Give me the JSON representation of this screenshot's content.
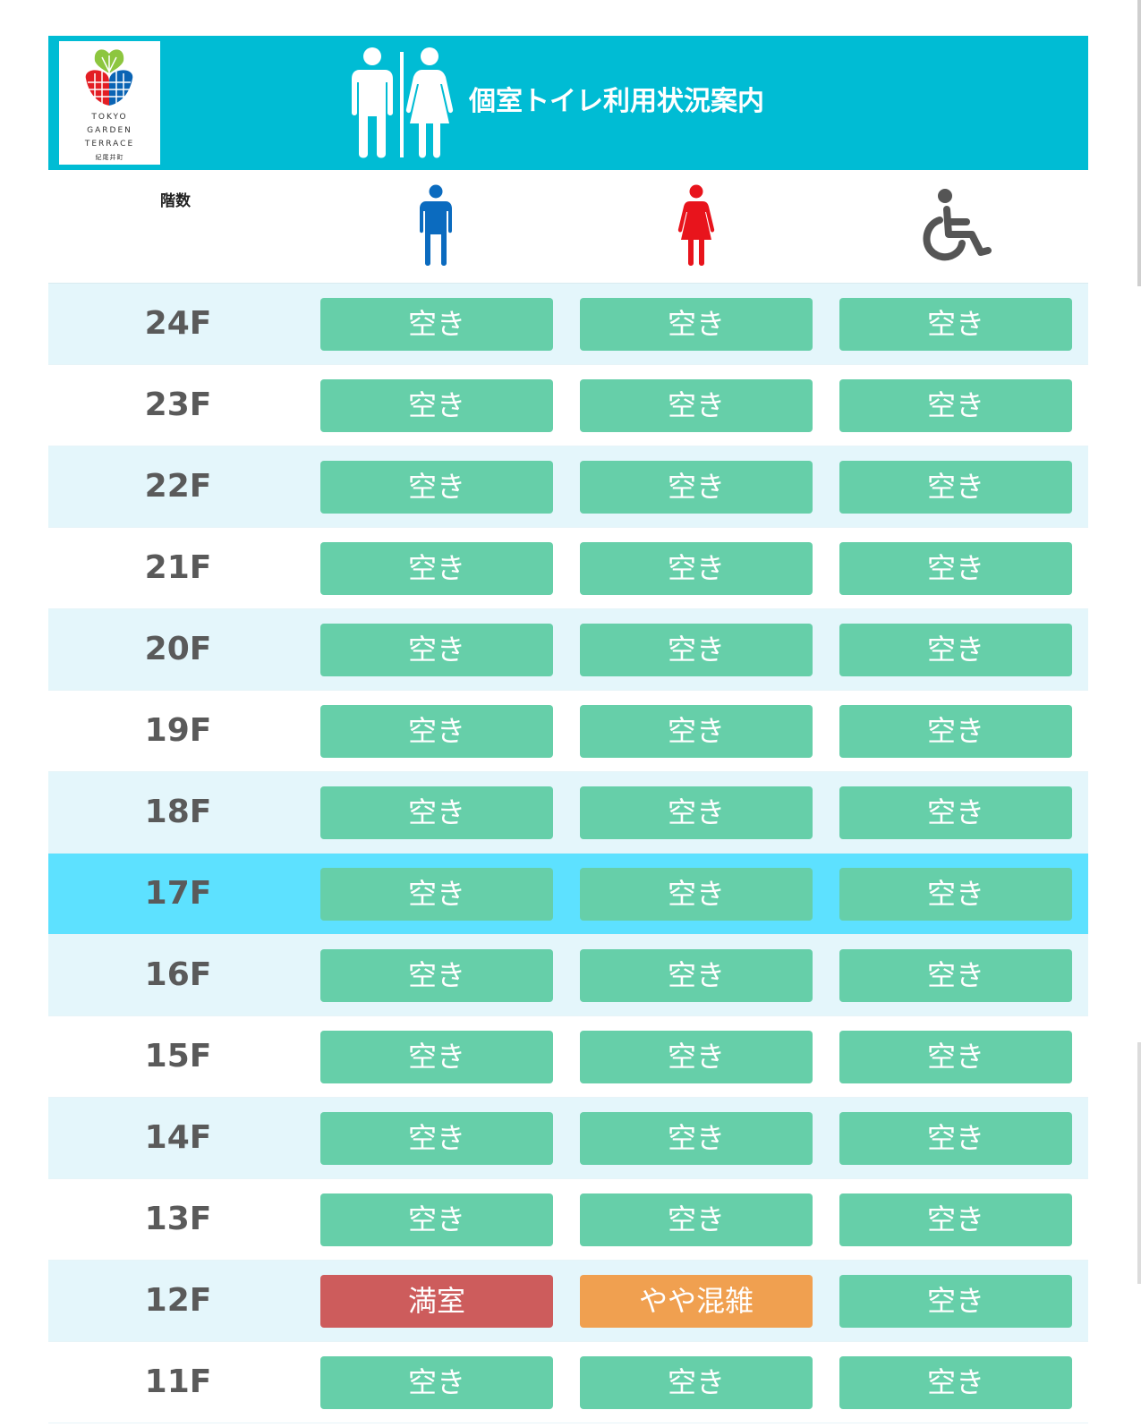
{
  "header": {
    "logo_lines": [
      "TOKYO",
      "GARDEN",
      "TERRACE",
      "紀尾井町"
    ],
    "title": "個室トイレ利用状況案内",
    "bg_color": "#00bcd4"
  },
  "columns": {
    "floor_label": "階数",
    "icons": [
      "male-icon",
      "female-icon",
      "wheelchair-icon"
    ],
    "icon_colors": [
      "#0b6bbf",
      "#e8141c",
      "#555555"
    ]
  },
  "status_colors": {
    "空き": "#66cfa9",
    "満室": "#cd5c5c",
    "やや混雑": "#f0a050"
  },
  "current_floor": "17F",
  "rows": [
    {
      "floor": "24F",
      "statuses": [
        "空き",
        "空き",
        "空き"
      ]
    },
    {
      "floor": "23F",
      "statuses": [
        "空き",
        "空き",
        "空き"
      ]
    },
    {
      "floor": "22F",
      "statuses": [
        "空き",
        "空き",
        "空き"
      ]
    },
    {
      "floor": "21F",
      "statuses": [
        "空き",
        "空き",
        "空き"
      ]
    },
    {
      "floor": "20F",
      "statuses": [
        "空き",
        "空き",
        "空き"
      ]
    },
    {
      "floor": "19F",
      "statuses": [
        "空き",
        "空き",
        "空き"
      ]
    },
    {
      "floor": "18F",
      "statuses": [
        "空き",
        "空き",
        "空き"
      ]
    },
    {
      "floor": "17F",
      "statuses": [
        "空き",
        "空き",
        "空き"
      ]
    },
    {
      "floor": "16F",
      "statuses": [
        "空き",
        "空き",
        "空き"
      ]
    },
    {
      "floor": "15F",
      "statuses": [
        "空き",
        "空き",
        "空き"
      ]
    },
    {
      "floor": "14F",
      "statuses": [
        "空き",
        "空き",
        "空き"
      ]
    },
    {
      "floor": "13F",
      "statuses": [
        "空き",
        "空き",
        "空き"
      ]
    },
    {
      "floor": "12F",
      "statuses": [
        "満室",
        "やや混雑",
        "空き"
      ]
    },
    {
      "floor": "11F",
      "statuses": [
        "空き",
        "空き",
        "空き"
      ]
    }
  ]
}
